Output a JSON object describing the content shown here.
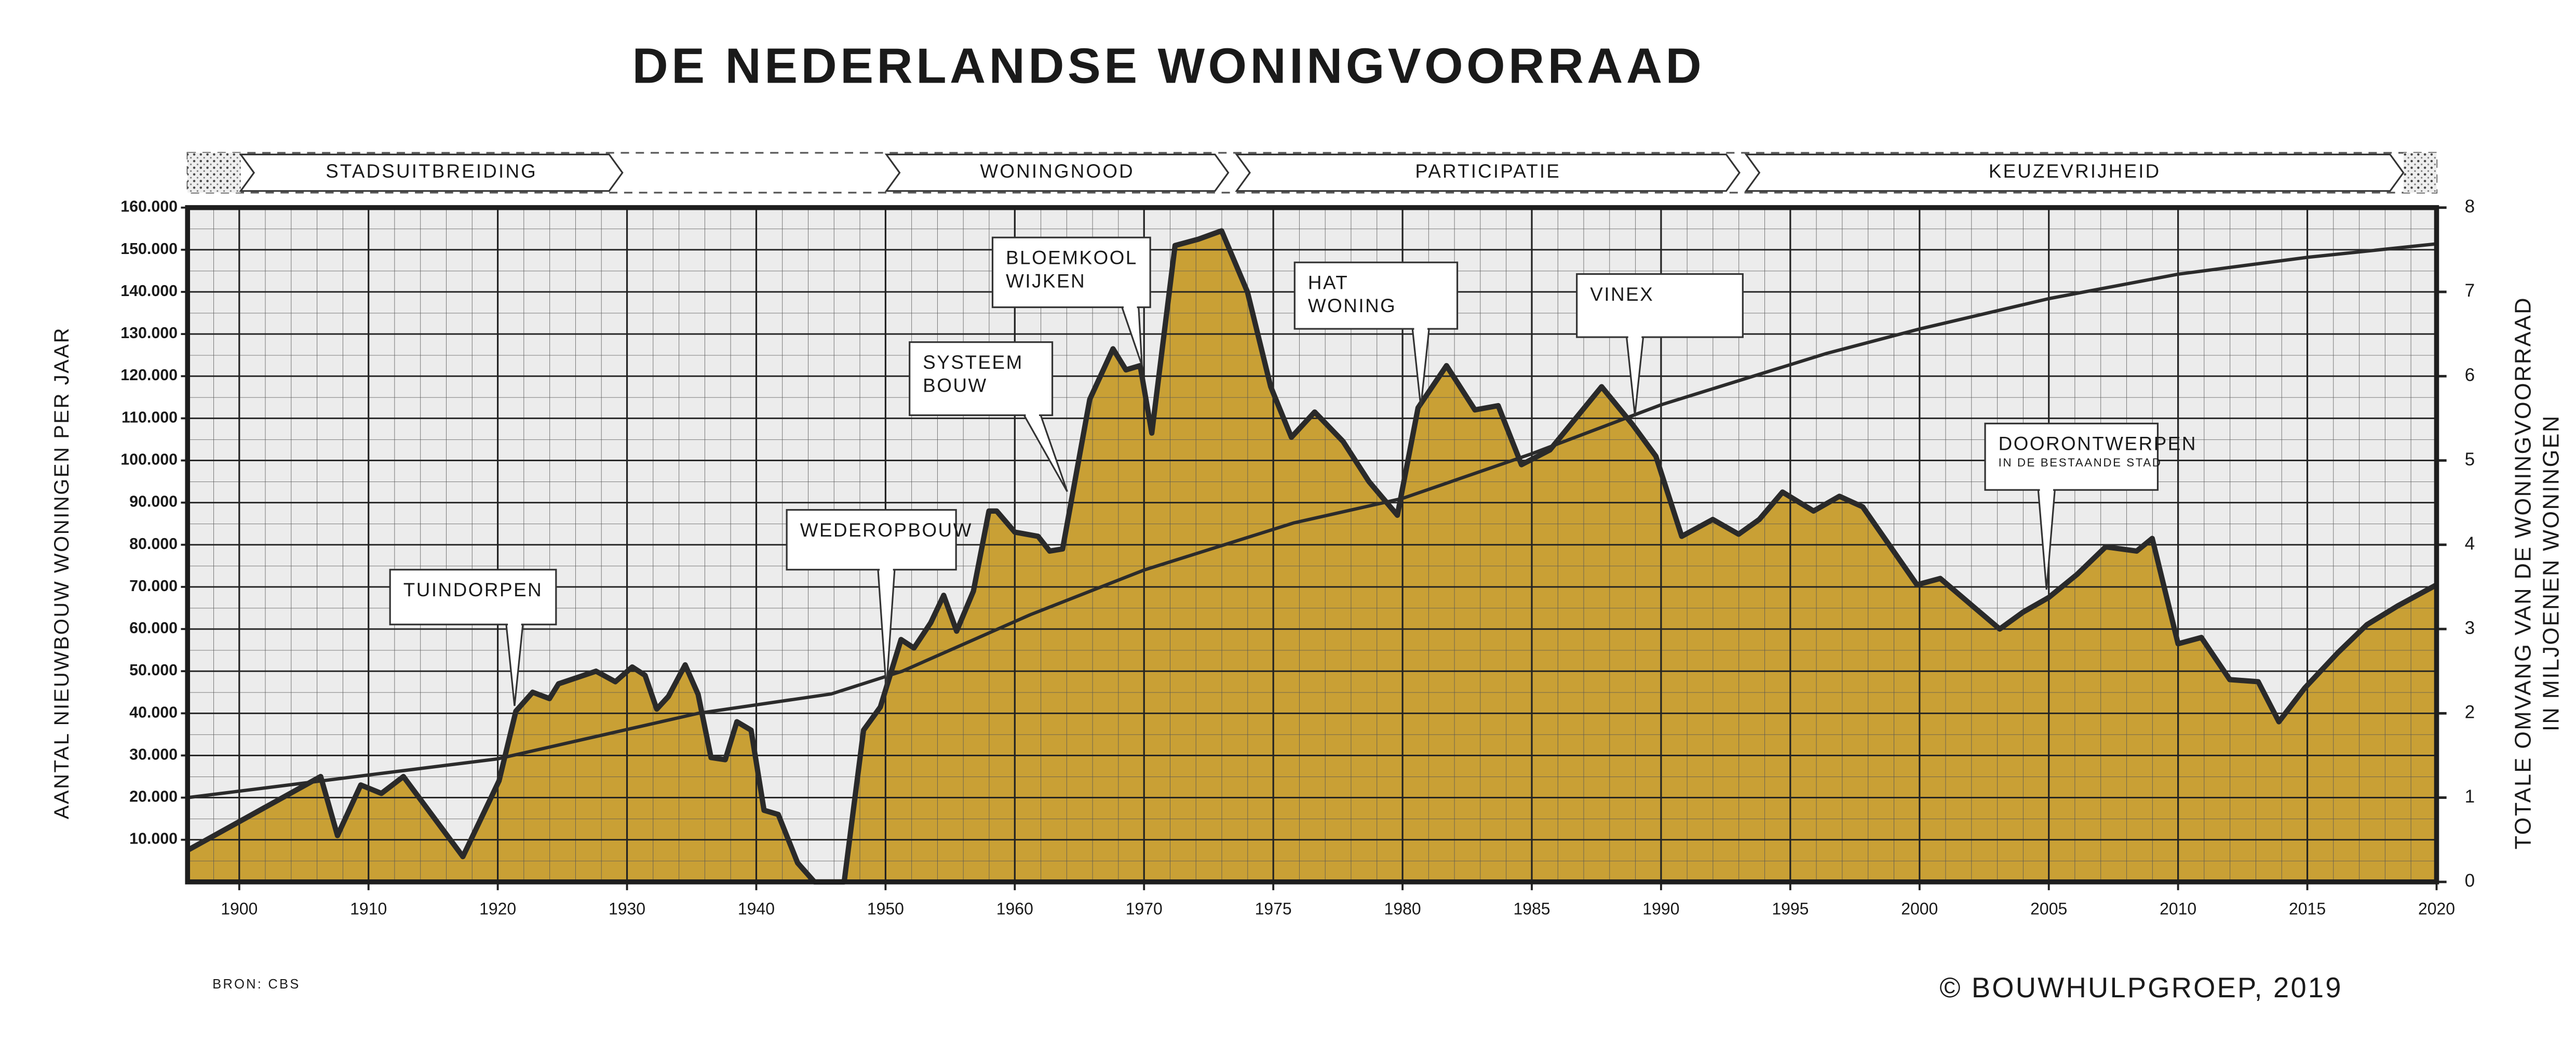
{
  "chart_data": {
    "type": "area",
    "title": "DE NEDERLANDSE WONINGVOORRAAD",
    "ylabel": "AANTAL NIEUWBOUW WONINGEN PER JAAR",
    "y2label": [
      "TOTALE OMVANG VAN DE WONINGVOORRAAD",
      "IN MILJOENEN WONINGEN"
    ],
    "periods": [
      "STADSUITBREIDING",
      "WONINGNOOD",
      "PARTICIPATIE",
      "KEUZEVRIJHEID"
    ],
    "annotations": [
      [
        "TUINDORPEN"
      ],
      [
        "WEDEROPBOUW"
      ],
      [
        "SYSTEEM",
        "BOUW"
      ],
      [
        "BLOEMKOOL",
        "WIJKEN"
      ],
      [
        "HAT",
        "WONING"
      ],
      [
        "VINEX"
      ],
      [
        "DOORONTWERPEN",
        "IN DE BESTAANDE STAD"
      ]
    ],
    "source": "BRON: CBS",
    "copyright": "© BOUWHULPGROEP, 2019",
    "xlim": [
      1896,
      2020
    ],
    "xticks": [
      1900,
      1910,
      1920,
      1930,
      1940,
      1950,
      1960,
      1970,
      1975,
      1980,
      1985,
      1990,
      1995,
      2000,
      2005,
      2010,
      2015,
      2020
    ],
    "ylim": [
      0,
      160000
    ],
    "yticks": [
      {
        "value": 10000,
        "label": "10.000"
      },
      {
        "value": 20000,
        "label": "20.000"
      },
      {
        "value": 30000,
        "label": "30.000"
      },
      {
        "value": 40000,
        "label": "40.000"
      },
      {
        "value": 50000,
        "label": "50.000"
      },
      {
        "value": 60000,
        "label": "60.000"
      },
      {
        "value": 70000,
        "label": "70.000"
      },
      {
        "value": 80000,
        "label": "80.000"
      },
      {
        "value": 90000,
        "label": "90.000"
      },
      {
        "value": 100000,
        "label": "100.000"
      },
      {
        "value": 110000,
        "label": "110.000"
      },
      {
        "value": 120000,
        "label": "120.000"
      },
      {
        "value": 130000,
        "label": "130.000"
      },
      {
        "value": 140000,
        "label": "140.000"
      },
      {
        "value": 150000,
        "label": "150.000"
      },
      {
        "value": 160000,
        "label": "160.000"
      }
    ],
    "y2lim": [
      0,
      8
    ],
    "y2ticks": [
      0,
      1,
      2,
      3,
      4,
      5,
      6,
      7,
      8
    ],
    "grid": true,
    "series": [
      {
        "type": "area",
        "color": "#c9a035",
        "x": [
          1896,
          1906.3,
          1907.6,
          1909.4,
          1911,
          1912.7,
          1917.3,
          1920.1,
          1921.4,
          1922.7,
          1924,
          1924.7,
          1927.6,
          1929.1,
          1930.4,
          1931.4,
          1932.3,
          1933.2,
          1934.5,
          1935.5,
          1936.5,
          1937.6,
          1938.5,
          1939.6,
          1940.6,
          1941.7,
          1943.2,
          1944.5,
          1946.8,
          1948.3,
          1949.6,
          1951.2,
          1952.2,
          1953.5,
          1954.5,
          1955.5,
          1956.8,
          1958,
          1958.6,
          1960,
          1961.8,
          1962.7,
          1963.7,
          1965.8,
          1967.6,
          1968.6,
          1969.7,
          1970.3,
          1971.2,
          1972.1,
          1973,
          1974,
          1974.9,
          1975.7,
          1976.6,
          1977.7,
          1978.7,
          1979.8,
          1980.6,
          1981.7,
          1982.8,
          1983.7,
          1984.6,
          1985.7,
          1987.7,
          1988.9,
          1989.8,
          1990.8,
          1992,
          1993,
          1993.8,
          1994.7,
          1995.9,
          1996.9,
          1997.8,
          1999.9,
          2000.8,
          2003.1,
          2004,
          2005,
          2006.1,
          2007.2,
          2008.4,
          2009,
          2010,
          2010.9,
          2012,
          2013.1,
          2013.9,
          2014.9,
          2016.2,
          2017.3,
          2018.5,
          2020
        ],
        "values": [
          7500,
          25000,
          11000,
          23000,
          21000,
          25000,
          6000,
          24000,
          40500,
          45000,
          43500,
          47000,
          50000,
          47500,
          51000,
          49000,
          41000,
          44000,
          51500,
          44500,
          29500,
          29000,
          38000,
          36000,
          17000,
          16000,
          4500,
          0,
          0,
          36000,
          41500,
          57500,
          55500,
          61500,
          68000,
          59500,
          69000,
          88000,
          88000,
          83000,
          82000,
          78500,
          79000,
          114500,
          126500,
          121500,
          122500,
          106500,
          151000,
          152500,
          154500,
          140000,
          117500,
          105500,
          111500,
          104500,
          95000,
          87000,
          112500,
          122500,
          112000,
          113000,
          99000,
          102500,
          117500,
          108500,
          101000,
          82000,
          86000,
          82500,
          86000,
          92500,
          88000,
          91500,
          89000,
          70500,
          72000,
          60000,
          64000,
          67500,
          73000,
          79500,
          78500,
          81500,
          56500,
          58000,
          48000,
          47500,
          38000,
          46000,
          54500,
          61000,
          65500,
          70500
        ]
      },
      {
        "type": "line",
        "axis": "y2",
        "color": "#2b2b2b",
        "x": [
          1896,
          1920,
          1935.5,
          1945.8,
          1951.3,
          1961.2,
          1970,
          1975.8,
          1980,
          1985,
          1990,
          1996.4,
          2000,
          2005,
          2010,
          2015,
          2020
        ],
        "values": [
          1.0,
          1.46,
          2.0,
          2.23,
          2.5,
          3.17,
          3.7,
          4.26,
          4.55,
          5.08,
          5.66,
          6.27,
          6.56,
          6.92,
          7.21,
          7.41,
          7.57
        ]
      }
    ]
  }
}
